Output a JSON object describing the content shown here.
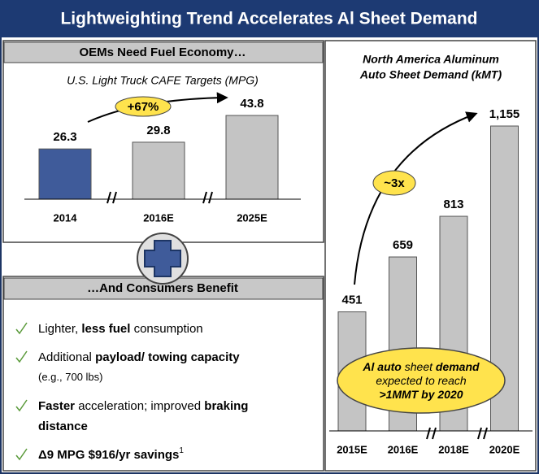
{
  "title": "Lightweighting Trend Accelerates Al Sheet Demand",
  "left_header": "OEMs Need Fuel Economy…",
  "bottom_header": "…And Consumers Benefit",
  "bullets": [
    {
      "lines": [
        [
          {
            "text": "Lighter, "
          },
          {
            "text": "less fuel",
            "bold": true
          },
          {
            "text": " consumption"
          }
        ]
      ]
    },
    {
      "lines": [
        [
          {
            "text": "Additional "
          },
          {
            "text": "payload/ towing capacity",
            "bold": true
          }
        ],
        [
          {
            "text": "(e.g., 700 lbs)",
            "small": true
          }
        ]
      ]
    },
    {
      "lines": [
        [
          {
            "text": "Faster",
            "bold": true
          },
          {
            "text": " acceleration; improved "
          },
          {
            "text": "braking",
            "bold": true
          }
        ],
        [
          {
            "text": "distance",
            "bold": true
          }
        ]
      ]
    },
    {
      "lines": [
        [
          {
            "text": "Δ9 MPG $916/yr savings",
            "bold": true
          },
          {
            "text": "1",
            "sup": true
          }
        ]
      ]
    }
  ],
  "chart_data": [
    {
      "type": "bar",
      "title": "U.S. Light Truck CAFE Targets (MPG)",
      "categories": [
        "2014",
        "2016E",
        "2025E"
      ],
      "values": [
        26.3,
        29.8,
        43.8
      ],
      "colors": [
        "#3f5b9a",
        "#c4c4c4",
        "#c4c4c4"
      ],
      "annotation": "+67%"
    },
    {
      "type": "bar",
      "title": [
        "North America Aluminum",
        "Auto Sheet Demand (kMT)"
      ],
      "categories": [
        "2015E",
        "2016E",
        "2018E",
        "2020E"
      ],
      "values": [
        451,
        659,
        813,
        1155
      ],
      "value_labels": [
        "451",
        "659",
        "813",
        "1,155"
      ],
      "color": "#c4c4c4",
      "annotation": "~3x",
      "callout": [
        [
          {
            "text": "Al auto",
            "bold": true
          },
          {
            "text": " sheet "
          },
          {
            "text": "demand",
            "bold": true
          }
        ],
        [
          {
            "text": "expected to reach"
          }
        ],
        [
          {
            "text": ">1MMT by 2020",
            "bold": true
          }
        ]
      ]
    }
  ]
}
